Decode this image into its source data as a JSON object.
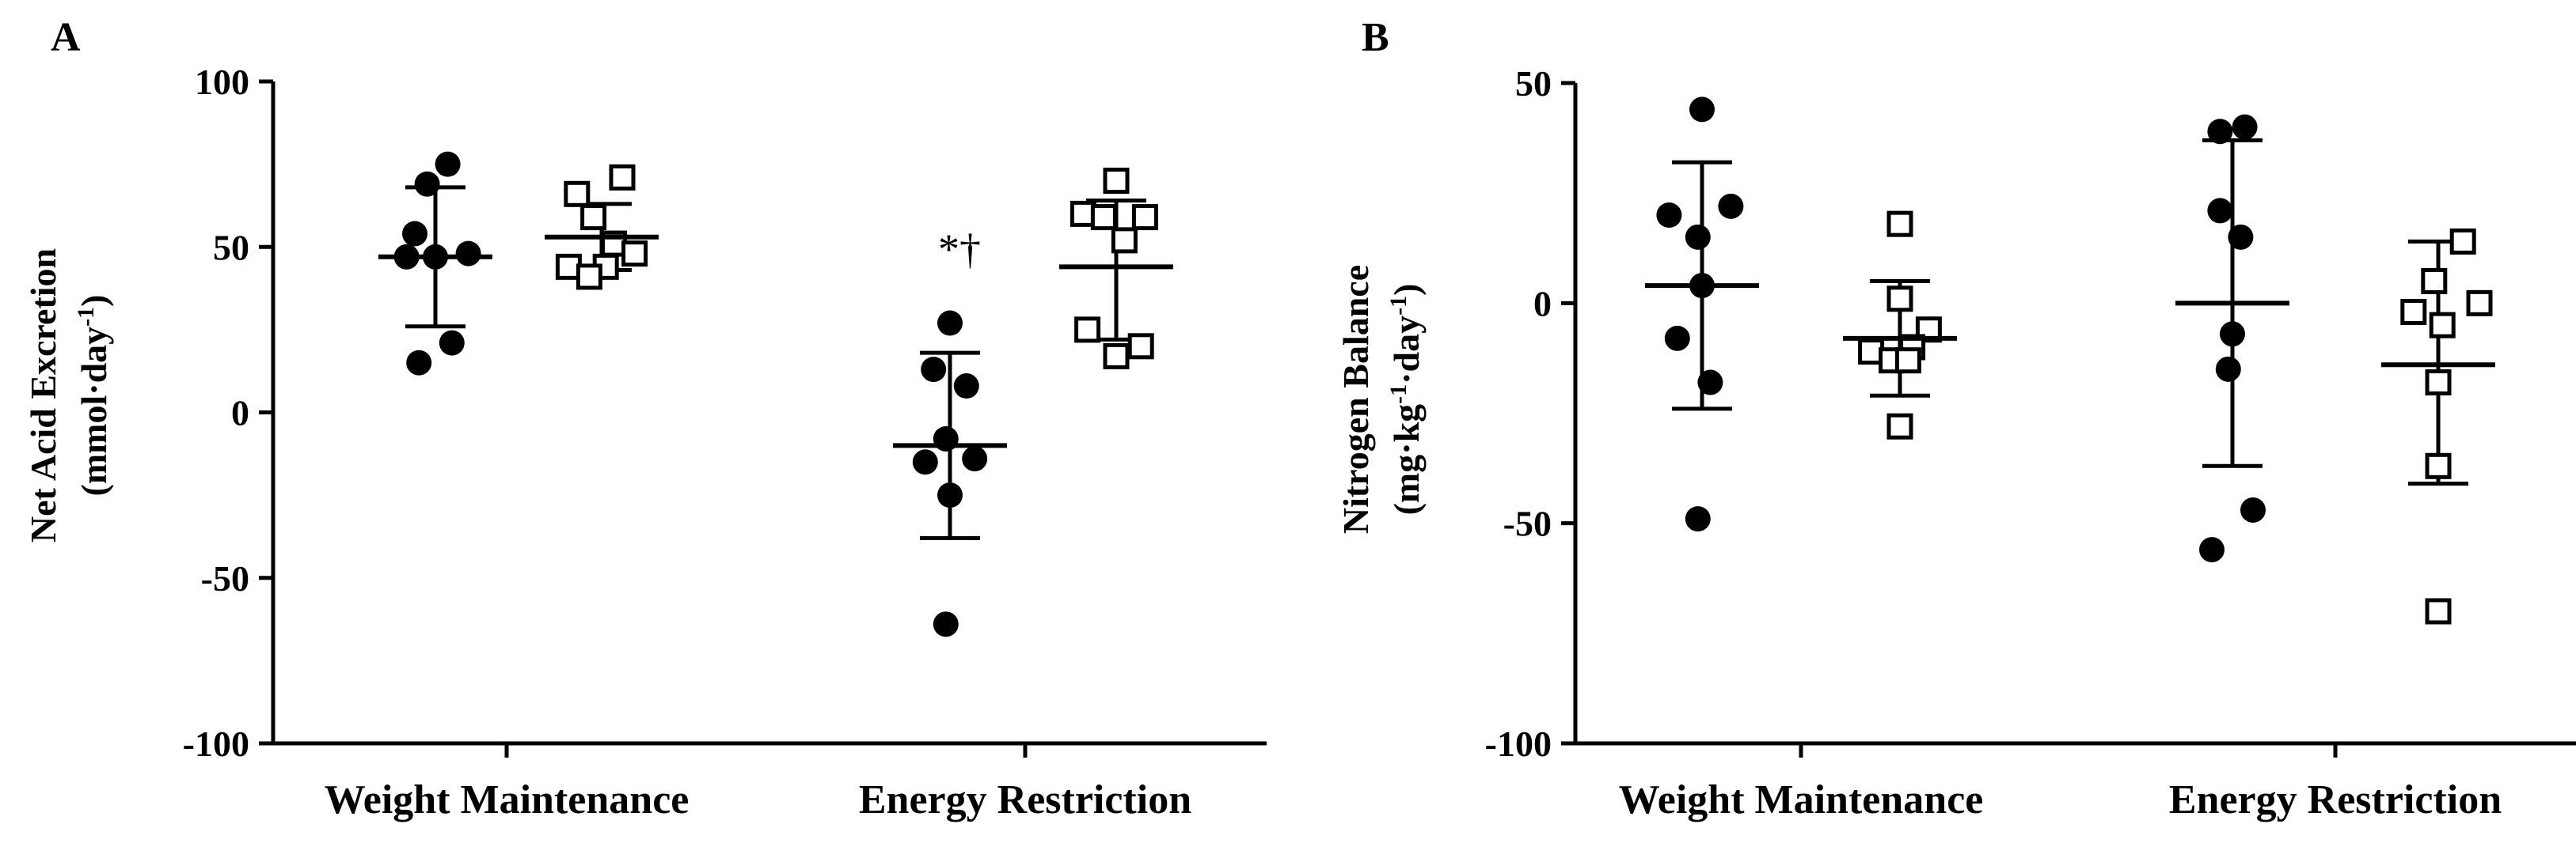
{
  "chart_data": [
    {
      "panel": "A",
      "type": "scatter",
      "title": "",
      "ylabel_line1": "Net Acid Excretion",
      "ylabel_line2": "(mmol·day",
      "ylabel_sup": "-1",
      "ylabel_close": ")",
      "ylim": [
        -100,
        100
      ],
      "yticks": [
        -100,
        -50,
        0,
        50,
        100
      ],
      "ytick_labels": [
        "-100",
        "-50",
        "0",
        "50",
        "100"
      ],
      "categories": [
        "Weight Maintenance",
        "Energy Restriction"
      ],
      "groups": [
        {
          "category": 0,
          "marker": "filled-circle",
          "mean": 47,
          "sd_low": 26,
          "sd_high": 68,
          "values": [
            {
              "dx": -0.5,
              "y": 54
            },
            {
              "dx": -0.2,
              "y": 69
            },
            {
              "dx": 0.3,
              "y": 75
            },
            {
              "dx": 0.0,
              "y": 47
            },
            {
              "dx": 0.8,
              "y": 48
            },
            {
              "dx": -0.7,
              "y": 47
            },
            {
              "dx": 0.4,
              "y": 21
            },
            {
              "dx": -0.4,
              "y": 15
            }
          ]
        },
        {
          "category": 0,
          "marker": "open-square",
          "mean": 53,
          "sd_low": 43,
          "sd_high": 63,
          "values": [
            {
              "dx": -0.6,
              "y": 66
            },
            {
              "dx": -0.2,
              "y": 59
            },
            {
              "dx": 0.5,
              "y": 71
            },
            {
              "dx": 0.3,
              "y": 51
            },
            {
              "dx": 0.8,
              "y": 48
            },
            {
              "dx": -0.8,
              "y": 44
            },
            {
              "dx": 0.1,
              "y": 44
            },
            {
              "dx": -0.3,
              "y": 41
            }
          ]
        },
        {
          "category": 1,
          "marker": "filled-circle",
          "mean": -10,
          "sd_low": -38,
          "sd_high": 18,
          "values": [
            {
              "dx": 0.0,
              "y": 27
            },
            {
              "dx": -0.4,
              "y": 13
            },
            {
              "dx": 0.4,
              "y": 8
            },
            {
              "dx": -0.1,
              "y": -8
            },
            {
              "dx": -0.6,
              "y": -15
            },
            {
              "dx": 0.6,
              "y": -14
            },
            {
              "dx": 0.0,
              "y": -25
            },
            {
              "dx": -0.1,
              "y": -64
            }
          ]
        },
        {
          "category": 1,
          "marker": "open-square",
          "mean": 44,
          "sd_low": 22,
          "sd_high": 64,
          "values": [
            {
              "dx": 0.0,
              "y": 70
            },
            {
              "dx": -0.8,
              "y": 60
            },
            {
              "dx": 0.7,
              "y": 59
            },
            {
              "dx": -0.3,
              "y": 59
            },
            {
              "dx": 0.2,
              "y": 52
            },
            {
              "dx": -0.7,
              "y": 25
            },
            {
              "dx": 0.6,
              "y": 20
            },
            {
              "dx": 0.0,
              "y": 17
            }
          ]
        }
      ],
      "annotations": [
        {
          "text": "*†",
          "category": 1,
          "series": 0,
          "y": 45
        }
      ]
    },
    {
      "panel": "B",
      "type": "scatter",
      "title": "",
      "ylabel_line1": "Nitrogen Balance",
      "ylabel_line2": "(mg·kg",
      "ylabel_sup1": "-1",
      "ylabel_mid": "·day",
      "ylabel_sup2": "-1",
      "ylabel_close": ")",
      "ylim": [
        -100,
        50
      ],
      "yticks": [
        -100,
        -50,
        0,
        50
      ],
      "ytick_labels": [
        "-100",
        "-50",
        "0",
        "50"
      ],
      "categories": [
        "Weight Maintenance",
        "Energy Restriction"
      ],
      "groups": [
        {
          "category": 0,
          "marker": "filled-circle",
          "mean": 4,
          "sd_low": -24,
          "sd_high": 32,
          "values": [
            {
              "dx": 0.0,
              "y": 44
            },
            {
              "dx": 0.7,
              "y": 22
            },
            {
              "dx": -0.8,
              "y": 20
            },
            {
              "dx": -0.1,
              "y": 15
            },
            {
              "dx": 0.0,
              "y": 4
            },
            {
              "dx": -0.6,
              "y": -8
            },
            {
              "dx": 0.2,
              "y": -18
            },
            {
              "dx": -0.1,
              "y": -49
            }
          ]
        },
        {
          "category": 0,
          "marker": "open-square",
          "mean": -8,
          "sd_low": -21,
          "sd_high": 5,
          "values": [
            {
              "dx": 0.0,
              "y": 18
            },
            {
              "dx": 0.0,
              "y": 1
            },
            {
              "dx": 0.7,
              "y": -6
            },
            {
              "dx": 0.3,
              "y": -10
            },
            {
              "dx": -0.7,
              "y": -11
            },
            {
              "dx": -0.2,
              "y": -13
            },
            {
              "dx": 0.2,
              "y": -13
            },
            {
              "dx": 0.0,
              "y": -28
            }
          ]
        },
        {
          "category": 1,
          "marker": "filled-circle",
          "mean": 0,
          "sd_low": -37,
          "sd_high": 37,
          "values": [
            {
              "dx": -0.3,
              "y": 39
            },
            {
              "dx": 0.3,
              "y": 40
            },
            {
              "dx": -0.3,
              "y": 21
            },
            {
              "dx": 0.2,
              "y": 15
            },
            {
              "dx": 0.0,
              "y": -7
            },
            {
              "dx": -0.1,
              "y": -15
            },
            {
              "dx": 0.5,
              "y": -47
            },
            {
              "dx": -0.5,
              "y": -56
            }
          ]
        },
        {
          "category": 1,
          "marker": "open-square",
          "mean": -14,
          "sd_low": -41,
          "sd_high": 14,
          "values": [
            {
              "dx": 0.6,
              "y": 14
            },
            {
              "dx": -0.1,
              "y": 5
            },
            {
              "dx": 1.0,
              "y": 0
            },
            {
              "dx": -0.6,
              "y": -2
            },
            {
              "dx": 0.1,
              "y": -5
            },
            {
              "dx": 0.0,
              "y": -18
            },
            {
              "dx": 0.0,
              "y": -37
            },
            {
              "dx": 0.0,
              "y": -70
            }
          ]
        }
      ],
      "annotations": []
    }
  ]
}
